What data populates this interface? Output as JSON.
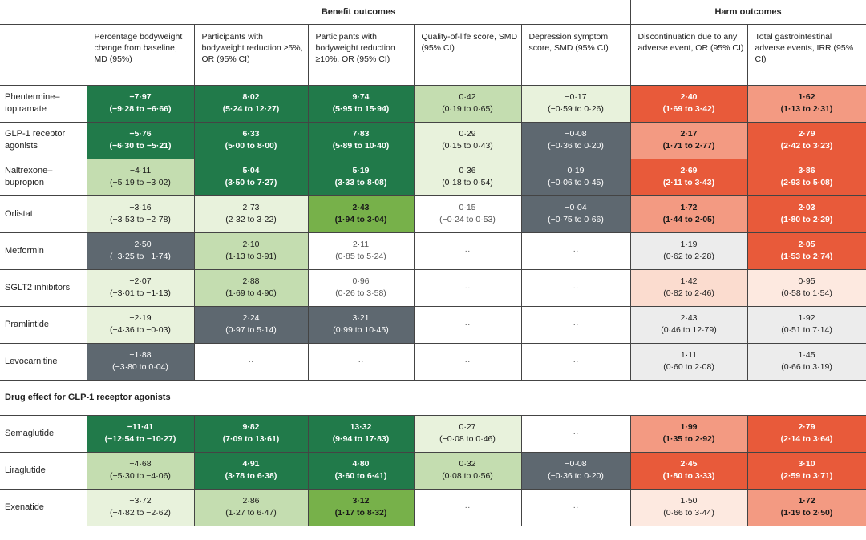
{
  "groups": {
    "benefit": "Benefit outcomes",
    "harm": "Harm outcomes"
  },
  "columns": [
    "Percentage bodyweight change from baseline, MD (95%)",
    "Participants with bodyweight reduction ≥5%, OR (95% CI)",
    "Participants with bodyweight reduction ≥10%, OR (95% CI)",
    "Quality-of-life score, SMD (95% CI)",
    "Depression symptom score, SMD (95% CI)",
    "Discontinuation due to any adverse event, OR (95% CI)",
    "Total gastrointestinal adverse events, IRR (95% CI)"
  ],
  "section_glp": "Drug effect for GLP-1 receptor agonists",
  "rows": [
    {
      "label": "Phentermine–topiramate",
      "cells": [
        {
          "v": "−7·97",
          "ci": "(−9·28 to −6·66)",
          "c": "c-dg"
        },
        {
          "v": "8·02",
          "ci": "(5·24 to 12·27)",
          "c": "c-dg"
        },
        {
          "v": "9·74",
          "ci": "(5·95 to 15·94)",
          "c": "c-dg"
        },
        {
          "v": "0·42",
          "ci": "(0·19 to 0·65)",
          "c": "c-lg"
        },
        {
          "v": "−0·17",
          "ci": "(−0·59 to 0·26)",
          "c": "c-vlg"
        },
        {
          "v": "2·40",
          "ci": "(1·69 to 3·42)",
          "c": "c-rd"
        },
        {
          "v": "1·62",
          "ci": "(1·13 to 2·31)",
          "c": "c-mr"
        }
      ]
    },
    {
      "label": "GLP-1 receptor agonists",
      "cells": [
        {
          "v": "−5·76",
          "ci": "(−6·30 to −5·21)",
          "c": "c-dg"
        },
        {
          "v": "6·33",
          "ci": "(5·00 to 8·00)",
          "c": "c-dg"
        },
        {
          "v": "7·83",
          "ci": "(5·89 to 10·40)",
          "c": "c-dg"
        },
        {
          "v": "0·29",
          "ci": "(0·15 to 0·43)",
          "c": "c-vlg"
        },
        {
          "v": "−0·08",
          "ci": "(−0·36 to 0·20)",
          "c": "c-gy"
        },
        {
          "v": "2·17",
          "ci": "(1·71 to 2·77)",
          "c": "c-mr"
        },
        {
          "v": "2·79",
          "ci": "(2·42 to 3·23)",
          "c": "c-rd"
        }
      ]
    },
    {
      "label": "Naltrexone–bupropion",
      "cells": [
        {
          "v": "−4·11",
          "ci": "(−5·19 to −3·02)",
          "c": "c-lg"
        },
        {
          "v": "5·04",
          "ci": "(3·50 to 7·27)",
          "c": "c-dg"
        },
        {
          "v": "5·19",
          "ci": "(3·33 to 8·08)",
          "c": "c-dg"
        },
        {
          "v": "0·36",
          "ci": "(0·18 to 0·54)",
          "c": "c-vlg"
        },
        {
          "v": "0·19",
          "ci": "(−0·06 to 0·45)",
          "c": "c-gy"
        },
        {
          "v": "2·69",
          "ci": "(2·11 to 3·43)",
          "c": "c-rd"
        },
        {
          "v": "3·86",
          "ci": "(2·93 to 5·08)",
          "c": "c-rd"
        }
      ]
    },
    {
      "label": "Orlistat",
      "cells": [
        {
          "v": "−3·16",
          "ci": "(−3·53 to −2·78)",
          "c": "c-vlg"
        },
        {
          "v": "2·73",
          "ci": "(2·32 to 3·22)",
          "c": "c-vlg"
        },
        {
          "v": "2·43",
          "ci": "(1·94 to 3·04)",
          "c": "c-mg"
        },
        {
          "v": "0·15",
          "ci": "(−0·24 to 0·53)",
          "c": "c-wh"
        },
        {
          "v": "−0·04",
          "ci": "(−0·75 to 0·66)",
          "c": "c-gy"
        },
        {
          "v": "1·72",
          "ci": "(1·44 to 2·05)",
          "c": "c-mr"
        },
        {
          "v": "2·03",
          "ci": "(1·80 to 2·29)",
          "c": "c-rd"
        }
      ]
    },
    {
      "label": "Metformin",
      "cells": [
        {
          "v": "−2·50",
          "ci": "(−3·25 to −1·74)",
          "c": "c-gy"
        },
        {
          "v": "2·10",
          "ci": "(1·13 to 3·91)",
          "c": "c-lg"
        },
        {
          "v": "2·11",
          "ci": "(0·85 to 5·24)",
          "c": "c-wh"
        },
        {
          "v": "··",
          "ci": "",
          "c": "c-wh"
        },
        {
          "v": "··",
          "ci": "",
          "c": "c-wh"
        },
        {
          "v": "1·19",
          "ci": "(0·62 to 2·28)",
          "c": "c-lgy"
        },
        {
          "v": "2·05",
          "ci": "(1·53 to 2·74)",
          "c": "c-rd"
        }
      ]
    },
    {
      "label": "SGLT2 inhibitors",
      "cells": [
        {
          "v": "−2·07",
          "ci": "(−3·01 to −1·13)",
          "c": "c-vlg"
        },
        {
          "v": "2·88",
          "ci": "(1·69 to 4·90)",
          "c": "c-lg"
        },
        {
          "v": "0·96",
          "ci": "(0·26 to 3·58)",
          "c": "c-wh"
        },
        {
          "v": "··",
          "ci": "",
          "c": "c-wh"
        },
        {
          "v": "··",
          "ci": "",
          "c": "c-wh"
        },
        {
          "v": "1·42",
          "ci": "(0·82 to 2·46)",
          "c": "c-lr"
        },
        {
          "v": "0·95",
          "ci": "(0·58 to 1·54)",
          "c": "c-vlr"
        }
      ]
    },
    {
      "label": "Pramlintide",
      "cells": [
        {
          "v": "−2·19",
          "ci": "(−4·36 to −0·03)",
          "c": "c-vlg"
        },
        {
          "v": "2·24",
          "ci": "(0·97 to 5·14)",
          "c": "c-gy"
        },
        {
          "v": "3·21",
          "ci": "(0·99 to 10·45)",
          "c": "c-gy"
        },
        {
          "v": "··",
          "ci": "",
          "c": "c-wh"
        },
        {
          "v": "··",
          "ci": "",
          "c": "c-wh"
        },
        {
          "v": "2·43",
          "ci": "(0·46 to 12·79)",
          "c": "c-lgy"
        },
        {
          "v": "1·92",
          "ci": "(0·51 to 7·14)",
          "c": "c-lgy"
        }
      ]
    },
    {
      "label": "Levocarnitine",
      "cells": [
        {
          "v": "−1·88",
          "ci": "(−3·80 to 0·04)",
          "c": "c-gy"
        },
        {
          "v": "··",
          "ci": "",
          "c": "c-wh"
        },
        {
          "v": "··",
          "ci": "",
          "c": "c-wh"
        },
        {
          "v": "··",
          "ci": "",
          "c": "c-wh"
        },
        {
          "v": "··",
          "ci": "",
          "c": "c-wh"
        },
        {
          "v": "1·11",
          "ci": "(0·60 to 2·08)",
          "c": "c-lgy"
        },
        {
          "v": "1·45",
          "ci": "(0·66 to 3·19)",
          "c": "c-lgy"
        }
      ]
    }
  ],
  "glp_rows": [
    {
      "label": "Semaglutide",
      "cells": [
        {
          "v": "−11·41",
          "ci": "(−12·54 to −10·27)",
          "c": "c-dg"
        },
        {
          "v": "9·82",
          "ci": "(7·09 to 13·61)",
          "c": "c-dg"
        },
        {
          "v": "13·32",
          "ci": "(9·94 to 17·83)",
          "c": "c-dg"
        },
        {
          "v": "0·27",
          "ci": "(−0·08 to 0·46)",
          "c": "c-vlg"
        },
        {
          "v": "··",
          "ci": "",
          "c": "c-wh"
        },
        {
          "v": "1·99",
          "ci": "(1·35 to 2·92)",
          "c": "c-mr"
        },
        {
          "v": "2·79",
          "ci": "(2·14 to 3·64)",
          "c": "c-rd"
        }
      ]
    },
    {
      "label": "Liraglutide",
      "cells": [
        {
          "v": "−4·68",
          "ci": "(−5·30 to −4·06)",
          "c": "c-lg"
        },
        {
          "v": "4·91",
          "ci": "(3·78 to 6·38)",
          "c": "c-dg"
        },
        {
          "v": "4·80",
          "ci": "(3·60 to 6·41)",
          "c": "c-dg"
        },
        {
          "v": "0·32",
          "ci": "(0·08 to 0·56)",
          "c": "c-lg"
        },
        {
          "v": "−0·08",
          "ci": "(−0·36 to 0·20)",
          "c": "c-gy"
        },
        {
          "v": "2·45",
          "ci": "(1·80 to 3·33)",
          "c": "c-rd"
        },
        {
          "v": "3·10",
          "ci": "(2·59 to 3·71)",
          "c": "c-rd"
        }
      ]
    },
    {
      "label": "Exenatide",
      "cells": [
        {
          "v": "−3·72",
          "ci": "(−4·82 to −2·62)",
          "c": "c-vlg"
        },
        {
          "v": "2·86",
          "ci": "(1·27 to 6·47)",
          "c": "c-lg"
        },
        {
          "v": "3·12",
          "ci": "(1·17 to 8·32)",
          "c": "c-mg"
        },
        {
          "v": "··",
          "ci": "",
          "c": "c-wh"
        },
        {
          "v": "··",
          "ci": "",
          "c": "c-wh"
        },
        {
          "v": "1·50",
          "ci": "(0·66 to 3·44)",
          "c": "c-vlr"
        },
        {
          "v": "1·72",
          "ci": "(1·19 to 2·50)",
          "c": "c-mr"
        }
      ]
    }
  ]
}
